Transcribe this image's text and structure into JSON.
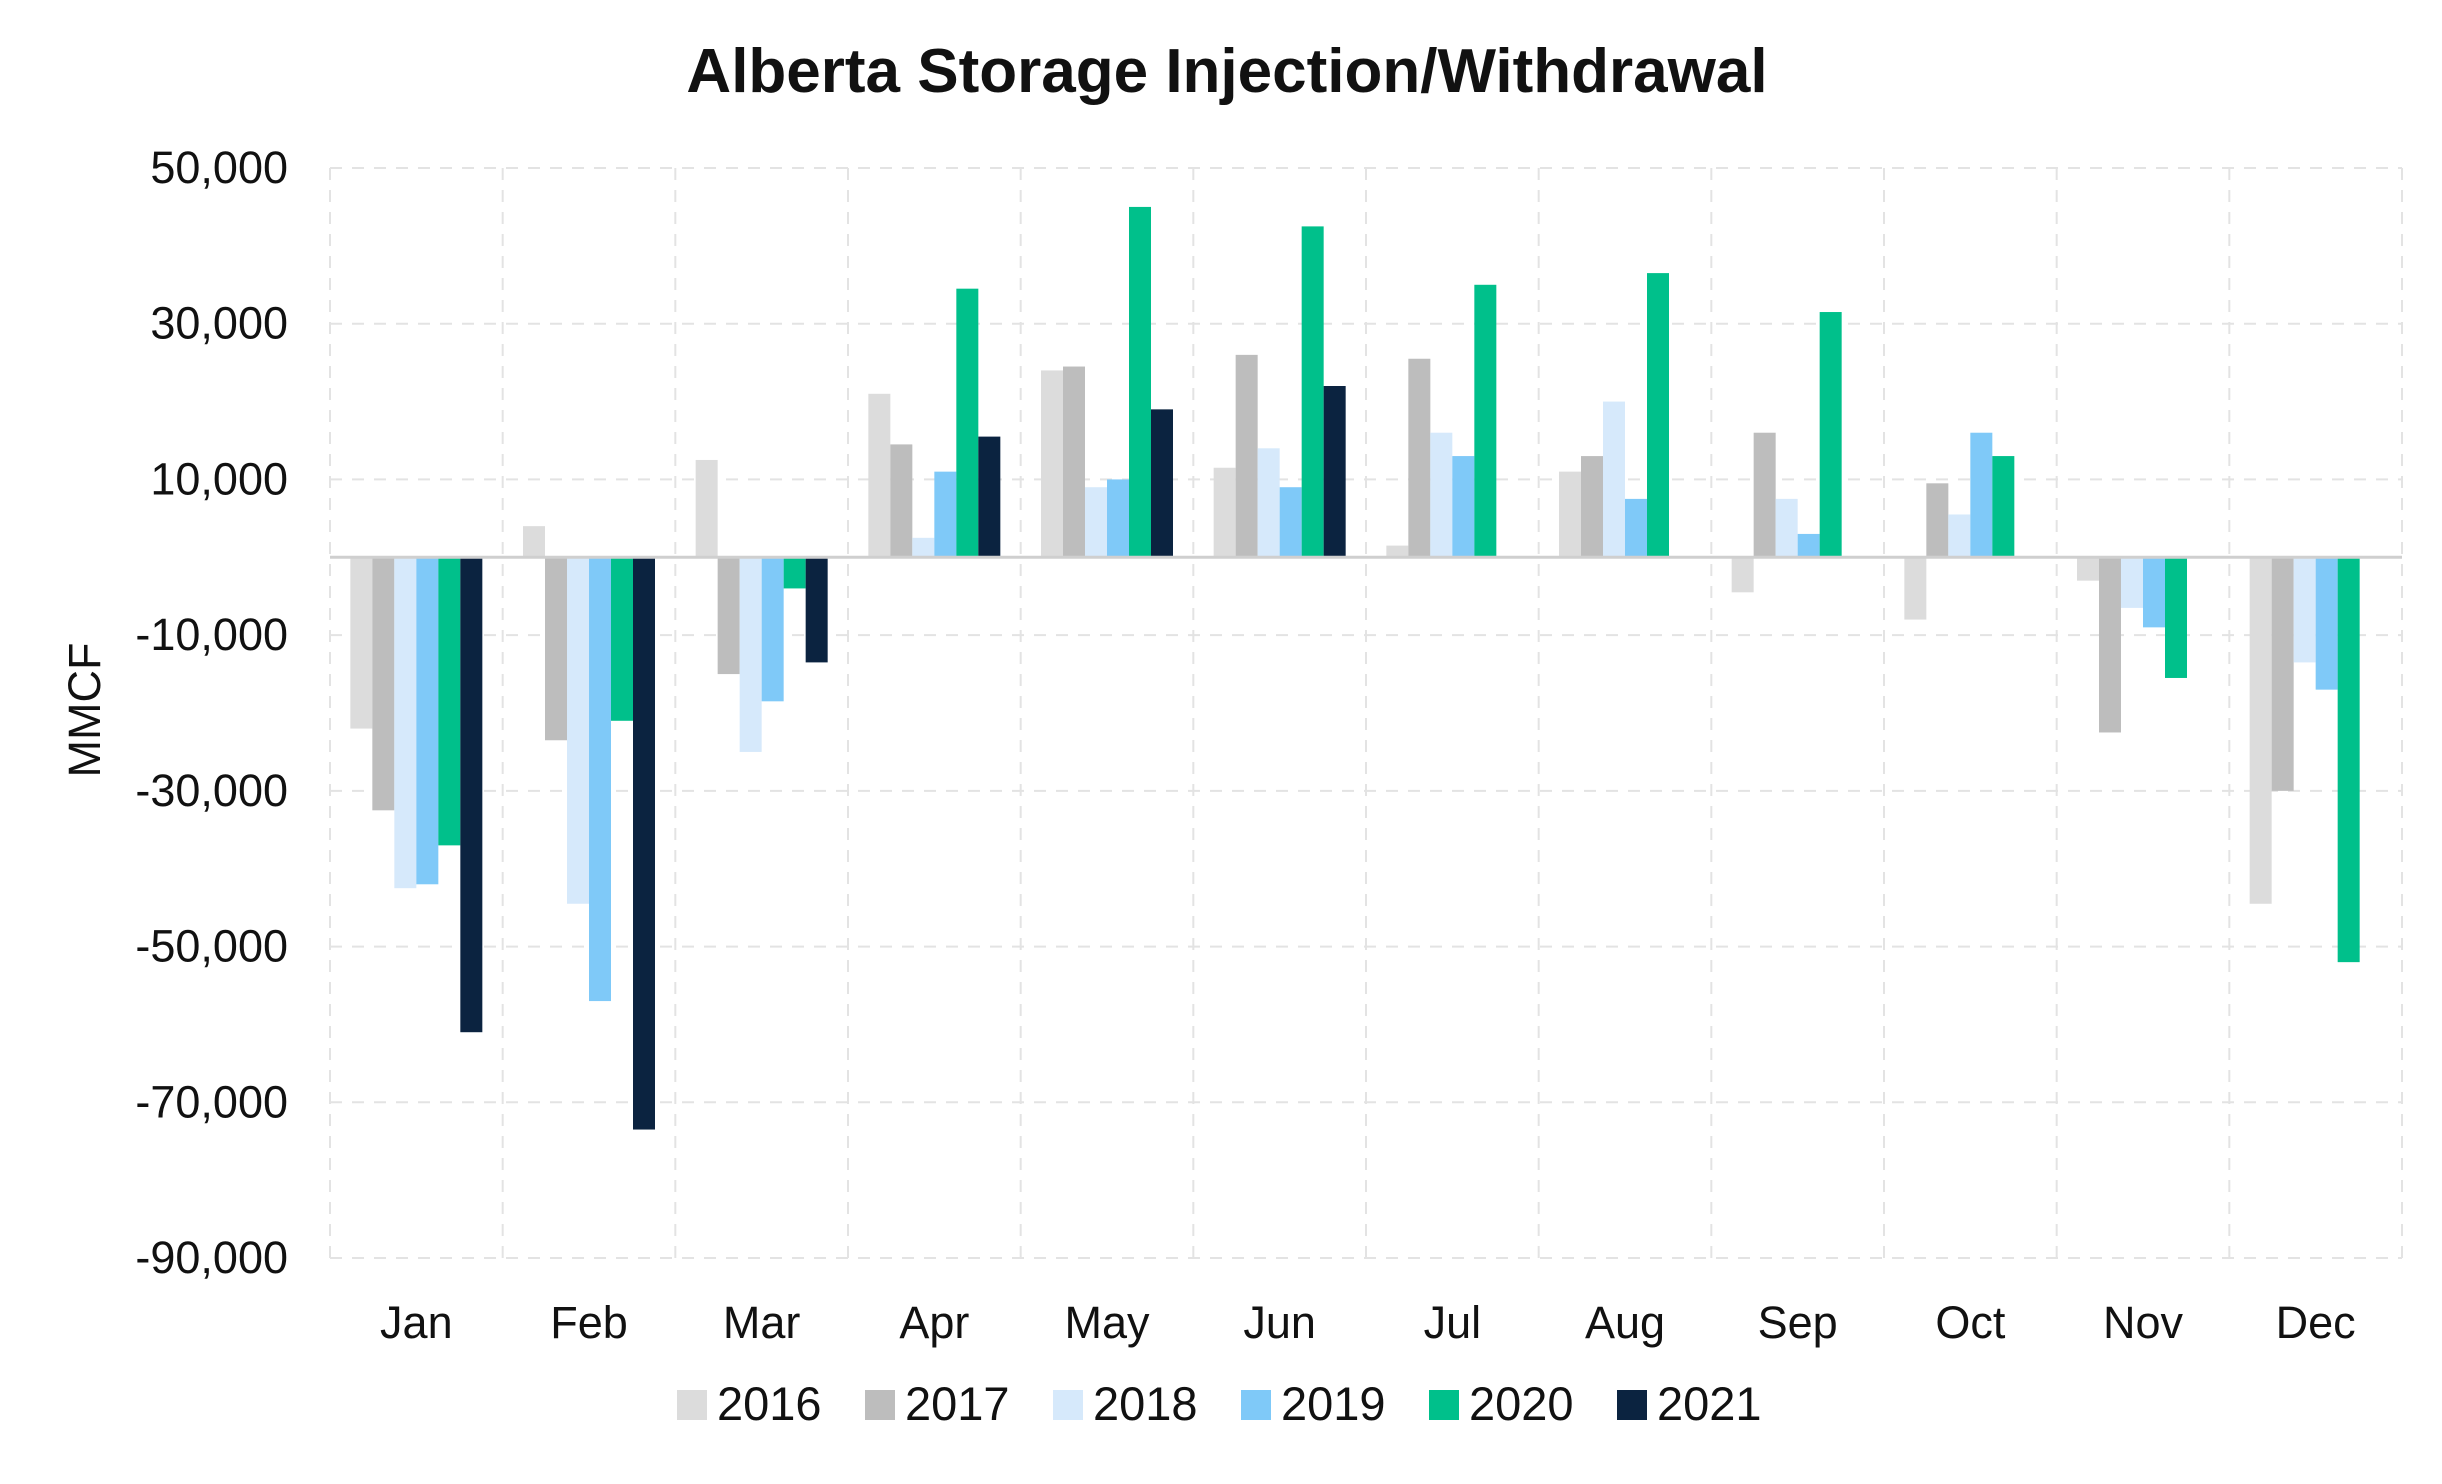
{
  "chart_data": {
    "type": "bar",
    "title": "Alberta Storage Injection/Withdrawal",
    "xlabel": "",
    "ylabel": "MMCF",
    "ylim": [
      -90000,
      50000
    ],
    "yticks": [
      50000,
      30000,
      10000,
      -10000,
      -30000,
      -50000,
      -70000,
      -90000
    ],
    "ytick_labels": [
      "50,000",
      "30,000",
      "10,000",
      "-10,000",
      "-30,000",
      "-50,000",
      "-70,000",
      "-90,000"
    ],
    "grid": true,
    "legend_position": "bottom",
    "categories": [
      "Jan",
      "Feb",
      "Mar",
      "Apr",
      "May",
      "Jun",
      "Jul",
      "Aug",
      "Sep",
      "Oct",
      "Nov",
      "Dec"
    ],
    "series": [
      {
        "name": "2016",
        "color": "#dcdcdc",
        "values": [
          -22000,
          4000,
          12500,
          21000,
          24000,
          11500,
          1500,
          11000,
          -4500,
          -8000,
          -3000,
          -44500
        ]
      },
      {
        "name": "2017",
        "color": "#bdbdbd",
        "values": [
          -32500,
          -23500,
          -15000,
          14500,
          24500,
          26000,
          25500,
          13000,
          16000,
          9500,
          -22500,
          -30000
        ]
      },
      {
        "name": "2018",
        "color": "#d6e9fb",
        "values": [
          -42500,
          -44500,
          -25000,
          2500,
          9000,
          14000,
          16000,
          20000,
          7500,
          5500,
          -6500,
          -13500
        ]
      },
      {
        "name": "2019",
        "color": "#7fc9f8",
        "values": [
          -42000,
          -57000,
          -18500,
          11000,
          10000,
          9000,
          13000,
          7500,
          3000,
          16000,
          -9000,
          -17000
        ]
      },
      {
        "name": "2020",
        "color": "#00c08b",
        "values": [
          -37000,
          -21000,
          -4000,
          34500,
          45000,
          42500,
          35000,
          36500,
          31500,
          13000,
          -15500,
          -52000
        ]
      },
      {
        "name": "2021",
        "color": "#0b2340",
        "values": [
          -61000,
          -73500,
          -13500,
          15500,
          19000,
          22000,
          null,
          null,
          null,
          null,
          null,
          null
        ]
      }
    ]
  }
}
